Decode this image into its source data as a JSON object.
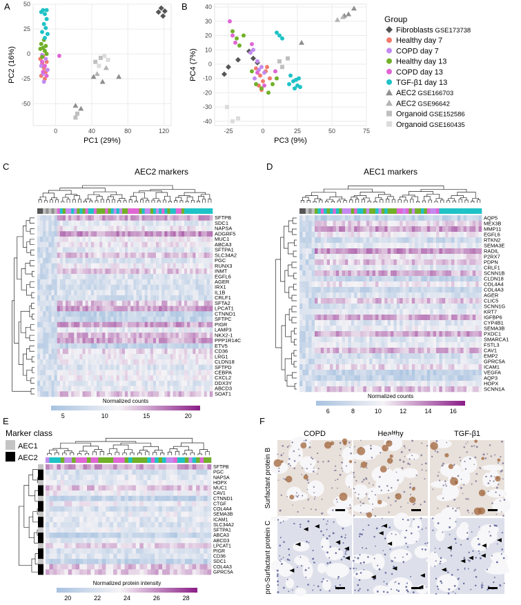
{
  "panel_letters": {
    "A": "A",
    "B": "B",
    "C": "C",
    "D": "D",
    "E": "E",
    "F": "F"
  },
  "colors": {
    "fibroblasts": "#555555",
    "healthy7": "#f27a6b",
    "copd7": "#c38af0",
    "healthy13": "#72b02a",
    "copd13": "#e066d4",
    "tgfb13": "#1fc2c6",
    "aec2": "#8f8f8f",
    "aec2b": "#b3b3b3",
    "org1": "#bfbfbf",
    "org2": "#dcdcdc",
    "aec1_class": "#c4c4c4",
    "aec2_class": "#000000",
    "heat_low": "#a7c2e0",
    "heat_mid": "#f5f3f6",
    "heat_high": "#8a1d87"
  },
  "legend": {
    "title": "Group",
    "items": [
      {
        "label": "Fibroblasts",
        "extra": "GSE173738",
        "shape": "diamond",
        "color": "#555555"
      },
      {
        "label": "Healthy day 7",
        "extra": "",
        "shape": "circle",
        "color": "#f27a6b"
      },
      {
        "label": "COPD day 7",
        "extra": "",
        "shape": "circle",
        "color": "#c38af0"
      },
      {
        "label": "Healthy day 13",
        "extra": "",
        "shape": "circle",
        "color": "#72b02a"
      },
      {
        "label": "COPD day 13",
        "extra": "",
        "shape": "circle",
        "color": "#e066d4"
      },
      {
        "label": "TGF-β1 day 13",
        "extra": "",
        "shape": "circle",
        "color": "#1fc2c6"
      },
      {
        "label": "AEC2",
        "extra": "GSE166703",
        "shape": "triangle",
        "color": "#8f8f8f"
      },
      {
        "label": "AEC2",
        "extra": "GSE96642",
        "shape": "triangle",
        "color": "#b3b3b3"
      },
      {
        "label": "Organoid",
        "extra": "GSE152586",
        "shape": "square",
        "color": "#bfbfbf"
      },
      {
        "label": "Organoid",
        "extra": "GSE160435",
        "shape": "square",
        "color": "#dcdcdc"
      }
    ]
  },
  "chart_data": [
    {
      "id": "A",
      "type": "scatter",
      "xlabel": "PC1 (29%)",
      "ylabel": "PC2 (16%)",
      "xlim": [
        -25,
        128
      ],
      "ylim": [
        -72,
        50
      ],
      "xticks": [
        0,
        40,
        80,
        120
      ],
      "yticks": [
        -50,
        -25,
        0,
        25,
        50
      ],
      "groups": [
        {
          "name": "Fibroblasts",
          "shape": "diamond",
          "color": "#555555",
          "points": [
            [
              114,
              42
            ],
            [
              117,
              46
            ],
            [
              119,
              38
            ],
            [
              121,
              43
            ]
          ]
        },
        {
          "name": "Healthy day 7",
          "shape": "circle",
          "color": "#f27a6b",
          "points": [
            [
              -17,
              -5
            ],
            [
              -15,
              -10
            ],
            [
              -13,
              -14
            ],
            [
              -11,
              -18
            ],
            [
              -16,
              -22
            ],
            [
              -12,
              -25
            ],
            [
              -14,
              -2
            ],
            [
              -10,
              -8
            ]
          ]
        },
        {
          "name": "COPD day 7",
          "shape": "circle",
          "color": "#c38af0",
          "points": [
            [
              -16,
              -12
            ],
            [
              -14,
              -20
            ],
            [
              -11,
              -5
            ],
            [
              -13,
              -28
            ],
            [
              -9,
              -16
            ],
            [
              -15,
              -1
            ]
          ]
        },
        {
          "name": "Healthy day 13",
          "shape": "circle",
          "color": "#72b02a",
          "points": [
            [
              -16,
              10
            ],
            [
              -14,
              6
            ],
            [
              -12,
              3
            ],
            [
              -11,
              8
            ],
            [
              -15,
              -3
            ],
            [
              -13,
              14
            ],
            [
              -10,
              0
            ],
            [
              -17,
              5
            ]
          ]
        },
        {
          "name": "COPD day 13",
          "shape": "circle",
          "color": "#e066d4",
          "points": [
            [
              -15,
              -8
            ],
            [
              -12,
              -12
            ],
            [
              -14,
              -18
            ],
            [
              -10,
              -22
            ],
            [
              4,
              -2
            ]
          ]
        },
        {
          "name": "TGF-β1 day 13",
          "shape": "circle",
          "color": "#1fc2c6",
          "points": [
            [
              -14,
              44
            ],
            [
              -12,
              40
            ],
            [
              -10,
              35
            ],
            [
              -13,
              30
            ],
            [
              -11,
              26
            ],
            [
              -15,
              22
            ],
            [
              -9,
              20
            ],
            [
              -12,
              16
            ],
            [
              -16,
              42
            ],
            [
              -10,
              44
            ]
          ]
        },
        {
          "name": "AEC2 GSE166703",
          "shape": "triangle",
          "color": "#8f8f8f",
          "points": [
            [
              42,
              -23
            ],
            [
              52,
              -28
            ],
            [
              70,
              -23
            ],
            [
              28,
              -55
            ],
            [
              22,
              -52
            ]
          ]
        },
        {
          "name": "AEC2 GSE96642",
          "shape": "triangle",
          "color": "#b3b3b3",
          "points": [
            [
              46,
              -20
            ],
            [
              56,
              -14
            ]
          ]
        },
        {
          "name": "Organoid GSE152586",
          "shape": "square",
          "color": "#bfbfbf",
          "points": [
            [
              22,
              -64
            ],
            [
              24,
              -60
            ],
            [
              50,
              -4
            ],
            [
              44,
              -8
            ]
          ]
        },
        {
          "name": "Organoid GSE160435",
          "shape": "square",
          "color": "#dcdcdc",
          "points": [
            [
              54,
              -2
            ],
            [
              48,
              -12
            ],
            [
              58,
              -6
            ]
          ]
        }
      ]
    },
    {
      "id": "B",
      "type": "scatter",
      "xlabel": "PC3 (9%)",
      "ylabel": "PC4 (7%)",
      "xlim": [
        -35,
        75
      ],
      "ylim": [
        -43,
        42
      ],
      "xticks": [
        -25,
        0,
        25,
        50,
        75
      ],
      "yticks": [
        -40,
        -30,
        -20,
        -10,
        0,
        10,
        20,
        30,
        40
      ],
      "groups": [
        {
          "name": "Fibroblasts",
          "shape": "diamond",
          "color": "#555555",
          "points": [
            [
              -28,
              -7
            ],
            [
              -25,
              -2
            ],
            [
              -18,
              3
            ],
            [
              -10,
              9
            ],
            [
              -7,
              4
            ],
            [
              -4,
              1
            ]
          ]
        },
        {
          "name": "Healthy day 7",
          "shape": "circle",
          "color": "#f27a6b",
          "points": [
            [
              -5,
              -3
            ],
            [
              -2,
              -8
            ],
            [
              0,
              -12
            ],
            [
              2,
              -5
            ],
            [
              -3,
              -15
            ],
            [
              5,
              -10
            ],
            [
              -1,
              -18
            ],
            [
              3,
              -2
            ]
          ]
        },
        {
          "name": "COPD day 7",
          "shape": "circle",
          "color": "#c38af0",
          "points": [
            [
              -7,
              10
            ],
            [
              -4,
              2
            ],
            [
              -1,
              -2
            ],
            [
              1,
              -6
            ],
            [
              -6,
              -10
            ],
            [
              -9,
              8
            ],
            [
              -3,
              -4
            ]
          ]
        },
        {
          "name": "Healthy day 13",
          "shape": "circle",
          "color": "#72b02a",
          "points": [
            [
              -22,
              23
            ],
            [
              -19,
              18
            ],
            [
              -17,
              13
            ],
            [
              -14,
              20
            ],
            [
              -5,
              -14
            ],
            [
              -1,
              -17
            ],
            [
              4,
              -20
            ],
            [
              7,
              -14
            ],
            [
              10,
              -10
            ],
            [
              -8,
              -5
            ]
          ]
        },
        {
          "name": "COPD day 13",
          "shape": "circle",
          "color": "#e066d4",
          "points": [
            [
              -24,
              30
            ],
            [
              -22,
              20
            ],
            [
              -20,
              15
            ],
            [
              -8,
              14
            ],
            [
              -4,
              -6
            ],
            [
              1,
              -15
            ],
            [
              9,
              -5
            ]
          ]
        },
        {
          "name": "TGF-β1 day 13",
          "shape": "circle",
          "color": "#1fc2c6",
          "points": [
            [
              10,
              22
            ],
            [
              12,
              20
            ],
            [
              14,
              18
            ],
            [
              20,
              -8
            ],
            [
              22,
              -12
            ],
            [
              25,
              -15
            ],
            [
              23,
              -17
            ],
            [
              27,
              -16
            ],
            [
              24,
              -11
            ],
            [
              19,
              -14
            ],
            [
              26,
              -10
            ]
          ]
        },
        {
          "name": "AEC2 GSE166703",
          "shape": "triangle",
          "color": "#8f8f8f",
          "points": [
            [
              28,
              15
            ],
            [
              66,
              39
            ],
            [
              59,
              34
            ],
            [
              62,
              35
            ]
          ]
        },
        {
          "name": "AEC2 GSE96642",
          "shape": "triangle",
          "color": "#b3b3b3",
          "points": [
            [
              54,
              31
            ],
            [
              58,
              33
            ]
          ]
        },
        {
          "name": "Organoid GSE152586",
          "shape": "square",
          "color": "#bfbfbf",
          "points": [
            [
              12,
              2
            ],
            [
              14,
              -2
            ],
            [
              18,
              4
            ]
          ]
        },
        {
          "name": "Organoid GSE160435",
          "shape": "square",
          "color": "#dcdcdc",
          "points": [
            [
              -26,
              -30
            ],
            [
              -22,
              -40
            ],
            [
              -18,
              -38
            ]
          ]
        }
      ]
    },
    {
      "id": "C",
      "type": "heatmap",
      "title": "AEC2 markers",
      "rows": [
        "SFTPB",
        "SDC1",
        "NAPSA",
        "ADGRF5",
        "MUC1",
        "ABCA3",
        "SFTPA1",
        "SLC34A2",
        "PGC",
        "RUNX3",
        "INMT",
        "EGFL6",
        "AGER",
        "IRX1",
        "IL1B",
        "CRLF1",
        "SFTA2",
        "LPCAT1",
        "CTNND1",
        "SFTPC",
        "PIGR",
        "LAMP3",
        "NKX2-1",
        "PPP1R14C",
        "ETV5",
        "CD36",
        "LRG1",
        "CLDN18",
        "SFTPD",
        "CEBPA",
        "CXCL2",
        "DDX3Y",
        "ABCD3",
        "SOAT1"
      ],
      "legend_title": "Normalized counts",
      "colorbar_ticks": [
        "5",
        "10",
        "15",
        "20"
      ]
    },
    {
      "id": "D",
      "type": "heatmap",
      "title": "AEC1 markers",
      "rows": [
        "AQP5",
        "MEX3B",
        "MMP11",
        "EGFL6",
        "RTKN2",
        "SEMA3E",
        "RADIL",
        "P2RX7",
        "PDPN",
        "CRLF1",
        "SCNN1B",
        "CLDN18",
        "COL4A4",
        "COL4A3",
        "AGER",
        "CLIC5",
        "SCNN1G",
        "KRT7",
        "IGFBP6",
        "CYP4B1",
        "SEMA3B",
        "PXDC1",
        "SMARCA1",
        "FSTL3",
        "CAV1",
        "EMP2",
        "GPRC5A",
        "ICAM1",
        "VEGFA",
        "AQP3",
        "HOPX",
        "SCNN1A"
      ],
      "legend_title": "Normalized counts",
      "colorbar_ticks": [
        "6",
        "8",
        "10",
        "12",
        "14",
        "16"
      ]
    },
    {
      "id": "E",
      "type": "heatmap",
      "rows": [
        "SFTPB",
        "PGC",
        "NAPSA",
        "HOPX",
        "MUC1",
        "CAV1",
        "CTNND1",
        "CTGF",
        "COL4A4",
        "SEMA3B",
        "ICAM1",
        "SLC34A2",
        "SFTPA1",
        "ABCA3",
        "ABCD3",
        "LPCAT1",
        "PIGR",
        "CD36",
        "SDC1",
        "COL4A3",
        "GPRC5A"
      ],
      "legend_title": "Normalized protein intensity",
      "colorbar_ticks": [
        "20",
        "22",
        "24",
        "26",
        "28"
      ],
      "marker_class_title": "Marker class",
      "marker_classes": [
        "AEC1",
        "AEC2"
      ]
    }
  ],
  "panelF": {
    "columns": [
      "COPD",
      "Healthy",
      "TGF-β1"
    ],
    "rows": [
      "Surfactant protein B",
      "pro-Surfactant protein C"
    ]
  }
}
